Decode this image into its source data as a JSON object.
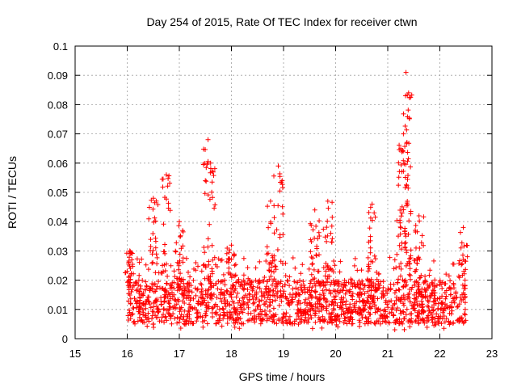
{
  "chart_data": {
    "type": "scatter",
    "title": "Day 254 of 2015, Rate Of TEC Index for receiver ctwn",
    "xlabel": "GPS time / hours",
    "ylabel": "ROTI / TECUs",
    "xlim": [
      15,
      23
    ],
    "ylim": [
      0,
      0.1
    ],
    "xticks": [
      "15",
      "16",
      "17",
      "18",
      "19",
      "20",
      "21",
      "22",
      "23"
    ],
    "yticks": [
      "0",
      "0.01",
      "0.02",
      "0.03",
      "0.04",
      "0.05",
      "0.06",
      "0.07",
      "0.08",
      "0.09",
      "0.1"
    ],
    "grid": true,
    "marker": "+",
    "color": "#ff0000",
    "x_data_range": [
      16.0,
      22.5
    ],
    "baseline_band": [
      0.005,
      0.02
    ],
    "series": [
      {
        "name": "ROTI",
        "note": "dense scatter; notable peaks listed",
        "peaks": [
          {
            "x": 16.05,
            "y": 0.03
          },
          {
            "x": 16.5,
            "y": 0.048
          },
          {
            "x": 16.75,
            "y": 0.056
          },
          {
            "x": 17.0,
            "y": 0.04
          },
          {
            "x": 17.55,
            "y": 0.068
          },
          {
            "x": 17.6,
            "y": 0.06
          },
          {
            "x": 18.0,
            "y": 0.032
          },
          {
            "x": 18.75,
            "y": 0.047
          },
          {
            "x": 18.9,
            "y": 0.059
          },
          {
            "x": 19.6,
            "y": 0.044
          },
          {
            "x": 19.85,
            "y": 0.047
          },
          {
            "x": 20.7,
            "y": 0.046
          },
          {
            "x": 21.25,
            "y": 0.065
          },
          {
            "x": 21.3,
            "y": 0.07
          },
          {
            "x": 21.35,
            "y": 0.091
          },
          {
            "x": 21.4,
            "y": 0.084
          },
          {
            "x": 21.6,
            "y": 0.042
          },
          {
            "x": 22.45,
            "y": 0.038
          }
        ]
      }
    ]
  }
}
